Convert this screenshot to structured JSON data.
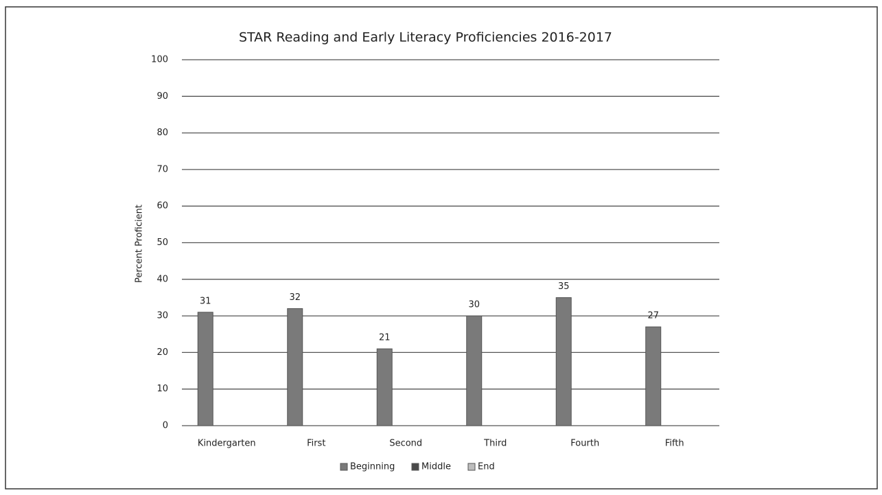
{
  "chart_data": {
    "type": "bar",
    "title": "STAR Reading and Early Literacy Proficiencies 2016-2017",
    "y_label": "Percent Proficient",
    "categories": [
      "Kindergarten",
      "First",
      "Second",
      "Third",
      "Fourth",
      "Fifth"
    ],
    "series": [
      {
        "name": "Beginning",
        "color": "#7a7a7a",
        "values": [
          31,
          32,
          21,
          30,
          35,
          27
        ]
      },
      {
        "name": "Middle",
        "color": "#4a4a4a",
        "values": [
          null,
          null,
          null,
          null,
          null,
          null
        ]
      },
      {
        "name": "End",
        "color": "#bdbdbd",
        "values": [
          null,
          null,
          null,
          null,
          null,
          null
        ]
      }
    ],
    "ylim": [
      0,
      100
    ],
    "yticks": [
      0,
      10,
      20,
      30,
      40,
      50,
      60,
      70,
      80,
      90,
      100
    ],
    "grid": true,
    "legend": "bottom"
  }
}
